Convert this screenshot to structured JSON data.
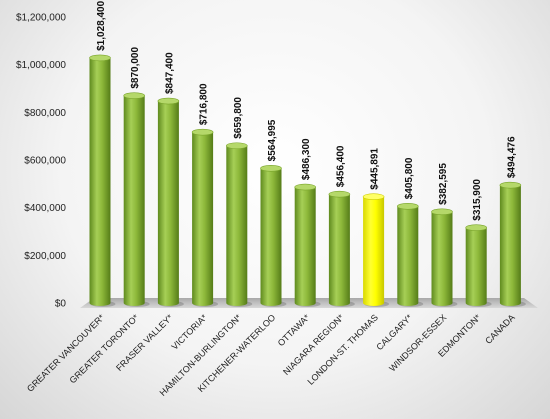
{
  "chart_data": {
    "type": "bar",
    "categories": [
      "GREATER VANCOUVER*",
      "GREATER TORONTO*",
      "FRASER VALLEY*",
      "VICTORIA*",
      "HAMILTON-BURLINGTON*",
      "KITCHENER-WATERLOO",
      "OTTAWA*",
      "NIAGARA REGION*",
      "LONDON-ST. THOMAS",
      "CALGARY*",
      "WINDSOR-ESSEX",
      "EDMONTON*",
      "CANADA"
    ],
    "values": [
      1028400,
      870000,
      847400,
      716800,
      659800,
      564995,
      486300,
      456400,
      445891,
      405800,
      382595,
      315900,
      494476
    ],
    "value_labels": [
      "$1,028,400",
      "$870,000",
      "$847,400",
      "$716,800",
      "$659,800",
      "$564,995",
      "$486,300",
      "$456,400",
      "$445,891",
      "$405,800",
      "$382,595",
      "$315,900",
      "$494,476"
    ],
    "yticks": [
      0,
      200000,
      400000,
      600000,
      800000,
      1000000,
      1200000
    ],
    "ytick_labels": [
      "$0",
      "$200,000",
      "$400,000",
      "$600,000",
      "$800,000",
      "$1,000,000",
      "$1,200,000"
    ],
    "ylim": [
      0,
      1200000
    ],
    "highlight_index": 8,
    "title": "",
    "xlabel": "",
    "ylabel": "",
    "grid": false,
    "colors": {
      "bar": "#8db83a",
      "bar_highlight": "#ffff00",
      "floor": "#c4c4c4"
    }
  }
}
